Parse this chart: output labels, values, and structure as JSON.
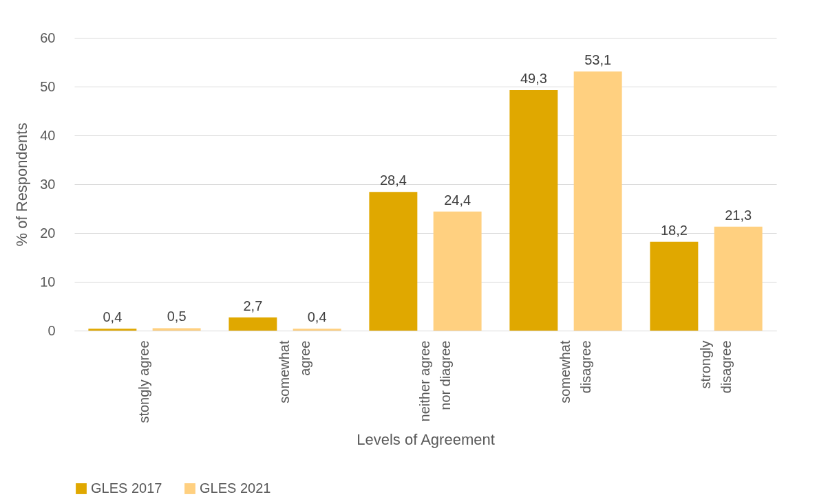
{
  "chart_data": {
    "type": "bar",
    "xlabel": "Levels of Agreement",
    "ylabel": "% of Respondents",
    "categories": [
      "stongly agree",
      "somewhat agree",
      "neither agree nor diagree",
      "somewhat disagree",
      "strongly disagree"
    ],
    "series": [
      {
        "name": "GLES 2017",
        "color": "#e0a800",
        "values": [
          0.4,
          2.7,
          28.4,
          49.3,
          18.2
        ],
        "value_labels": [
          "0,4",
          "2,7",
          "28,4",
          "49,3",
          "18,2"
        ]
      },
      {
        "name": "GLES 2021",
        "color": "#ffd080",
        "values": [
          0.5,
          0.4,
          24.4,
          53.1,
          21.3
        ],
        "value_labels": [
          "0,5",
          "0,4",
          "24,4",
          "53,1",
          "21,3"
        ]
      }
    ],
    "ylim": [
      0,
      60
    ],
    "yticks": [
      0,
      10,
      20,
      30,
      40,
      50,
      60
    ],
    "grid": "y",
    "legend": "bottom"
  }
}
